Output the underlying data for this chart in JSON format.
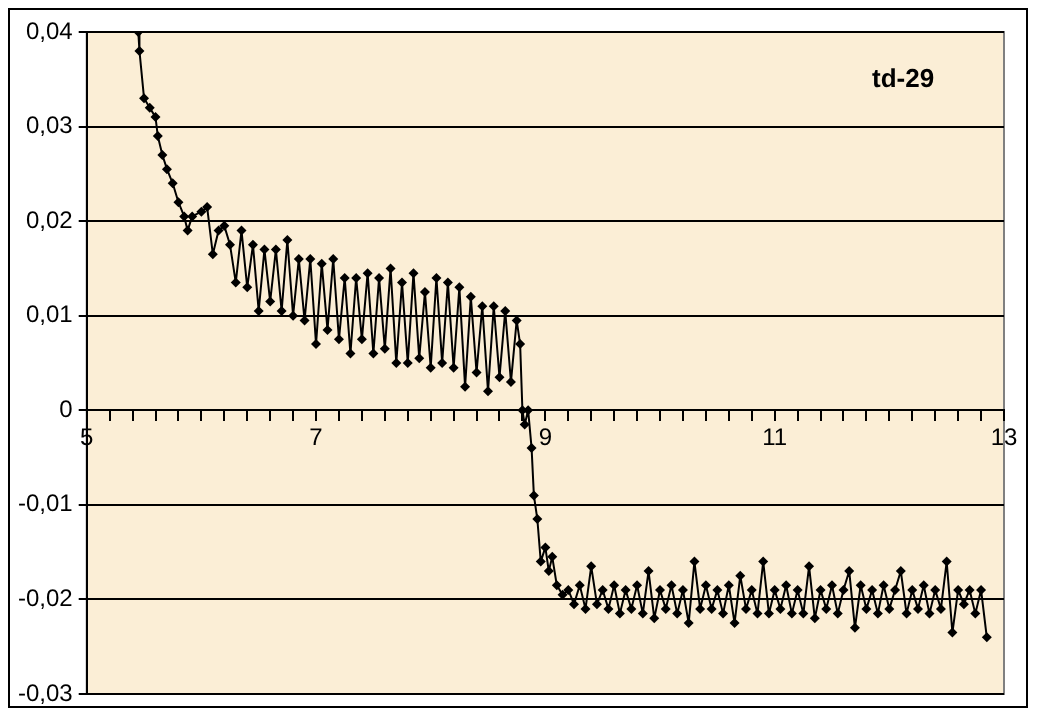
{
  "chart_data": {
    "type": "line",
    "annotations": [
      "td-29"
    ],
    "x": [
      5.45,
      5.46,
      5.5,
      5.55,
      5.6,
      5.62,
      5.66,
      5.7,
      5.75,
      5.8,
      5.85,
      5.88,
      5.92,
      6.0,
      6.05,
      6.1,
      6.15,
      6.2,
      6.25,
      6.3,
      6.35,
      6.4,
      6.45,
      6.5,
      6.55,
      6.6,
      6.65,
      6.7,
      6.75,
      6.8,
      6.85,
      6.9,
      6.95,
      7.0,
      7.05,
      7.1,
      7.15,
      7.2,
      7.25,
      7.3,
      7.35,
      7.4,
      7.45,
      7.5,
      7.55,
      7.6,
      7.65,
      7.7,
      7.75,
      7.8,
      7.85,
      7.9,
      7.95,
      8.0,
      8.05,
      8.1,
      8.15,
      8.2,
      8.25,
      8.3,
      8.35,
      8.4,
      8.45,
      8.5,
      8.55,
      8.6,
      8.65,
      8.7,
      8.75,
      8.78,
      8.8,
      8.82,
      8.85,
      8.88,
      8.9,
      8.93,
      8.96,
      9.0,
      9.03,
      9.06,
      9.1,
      9.15,
      9.2,
      9.25,
      9.3,
      9.35,
      9.4,
      9.45,
      9.5,
      9.55,
      9.6,
      9.65,
      9.7,
      9.75,
      9.8,
      9.85,
      9.9,
      9.95,
      10.0,
      10.05,
      10.1,
      10.15,
      10.2,
      10.25,
      10.3,
      10.35,
      10.4,
      10.45,
      10.5,
      10.55,
      10.6,
      10.65,
      10.7,
      10.75,
      10.8,
      10.85,
      10.9,
      10.95,
      11.0,
      11.05,
      11.1,
      11.15,
      11.2,
      11.25,
      11.3,
      11.35,
      11.4,
      11.45,
      11.5,
      11.55,
      11.6,
      11.65,
      11.7,
      11.75,
      11.8,
      11.85,
      11.9,
      11.95,
      12.0,
      12.05,
      12.1,
      12.15,
      12.2,
      12.25,
      12.3,
      12.35,
      12.4,
      12.45,
      12.5,
      12.55,
      12.6,
      12.65,
      12.7,
      12.75,
      12.8,
      12.85
    ],
    "series": [
      {
        "color": "#000000",
        "values": [
          0.04,
          0.038,
          0.033,
          0.032,
          0.031,
          0.029,
          0.027,
          0.0255,
          0.024,
          0.022,
          0.0205,
          0.019,
          0.0205,
          0.021,
          0.0215,
          0.0165,
          0.019,
          0.0195,
          0.0175,
          0.0135,
          0.019,
          0.013,
          0.0175,
          0.0105,
          0.017,
          0.0115,
          0.017,
          0.0105,
          0.018,
          0.01,
          0.016,
          0.0095,
          0.016,
          0.007,
          0.0155,
          0.0085,
          0.016,
          0.0075,
          0.014,
          0.006,
          0.014,
          0.0075,
          0.0145,
          0.006,
          0.014,
          0.0065,
          0.015,
          0.005,
          0.0135,
          0.005,
          0.0145,
          0.0055,
          0.0125,
          0.0045,
          0.014,
          0.005,
          0.0135,
          0.0045,
          0.013,
          0.0025,
          0.012,
          0.004,
          0.011,
          0.002,
          0.011,
          0.0035,
          0.0105,
          0.003,
          0.0095,
          0.007,
          0.0,
          -0.0015,
          0.0,
          -0.004,
          -0.009,
          -0.0115,
          -0.016,
          -0.0145,
          -0.017,
          -0.0155,
          -0.0185,
          -0.0195,
          -0.019,
          -0.0205,
          -0.0185,
          -0.021,
          -0.0165,
          -0.0205,
          -0.019,
          -0.021,
          -0.0185,
          -0.0215,
          -0.019,
          -0.021,
          -0.0185,
          -0.0215,
          -0.017,
          -0.022,
          -0.019,
          -0.021,
          -0.0185,
          -0.0215,
          -0.019,
          -0.0225,
          -0.016,
          -0.021,
          -0.0185,
          -0.021,
          -0.019,
          -0.0215,
          -0.0185,
          -0.0225,
          -0.0175,
          -0.021,
          -0.019,
          -0.0215,
          -0.016,
          -0.0215,
          -0.019,
          -0.021,
          -0.0185,
          -0.0215,
          -0.019,
          -0.0215,
          -0.0165,
          -0.022,
          -0.019,
          -0.021,
          -0.0185,
          -0.0215,
          -0.019,
          -0.017,
          -0.023,
          -0.0185,
          -0.021,
          -0.019,
          -0.0215,
          -0.0185,
          -0.021,
          -0.019,
          -0.017,
          -0.0215,
          -0.019,
          -0.021,
          -0.0185,
          -0.0215,
          -0.019,
          -0.021,
          -0.016,
          -0.0235,
          -0.019,
          -0.0205,
          -0.019,
          -0.0215,
          -0.019,
          -0.024
        ]
      }
    ],
    "xlim": [
      5,
      13
    ],
    "xticks": [
      {
        "value": 5,
        "label": "5"
      },
      {
        "value": 5.2,
        "label": null
      },
      {
        "value": 5.4,
        "label": null
      },
      {
        "value": 5.6,
        "label": null
      },
      {
        "value": 5.8,
        "label": null
      },
      {
        "value": 6,
        "label": null
      },
      {
        "value": 6.2,
        "label": null
      },
      {
        "value": 6.4,
        "label": null
      },
      {
        "value": 6.6,
        "label": null
      },
      {
        "value": 6.8,
        "label": null
      },
      {
        "value": 7,
        "label": "7"
      },
      {
        "value": 7.2,
        "label": null
      },
      {
        "value": 7.4,
        "label": null
      },
      {
        "value": 7.6,
        "label": null
      },
      {
        "value": 7.8,
        "label": null
      },
      {
        "value": 8,
        "label": null
      },
      {
        "value": 8.2,
        "label": null
      },
      {
        "value": 8.4,
        "label": null
      },
      {
        "value": 8.6,
        "label": null
      },
      {
        "value": 8.8,
        "label": null
      },
      {
        "value": 9,
        "label": "9"
      },
      {
        "value": 9.2,
        "label": null
      },
      {
        "value": 9.4,
        "label": null
      },
      {
        "value": 9.6,
        "label": null
      },
      {
        "value": 9.8,
        "label": null
      },
      {
        "value": 10,
        "label": null
      },
      {
        "value": 10.2,
        "label": null
      },
      {
        "value": 10.4,
        "label": null
      },
      {
        "value": 10.6,
        "label": null
      },
      {
        "value": 10.8,
        "label": null
      },
      {
        "value": 11,
        "label": "11"
      },
      {
        "value": 11.2,
        "label": null
      },
      {
        "value": 11.4,
        "label": null
      },
      {
        "value": 11.6,
        "label": null
      },
      {
        "value": 11.8,
        "label": null
      },
      {
        "value": 12,
        "label": null
      },
      {
        "value": 12.2,
        "label": null
      },
      {
        "value": 12.4,
        "label": null
      },
      {
        "value": 12.6,
        "label": null
      },
      {
        "value": 12.8,
        "label": null
      },
      {
        "value": 13,
        "label": "13"
      }
    ],
    "ylim": [
      -0.03,
      0.04
    ],
    "yticks": [
      {
        "value": -0.03,
        "label": "-0,03"
      },
      {
        "value": -0.02,
        "label": "-0,02"
      },
      {
        "value": -0.01,
        "label": "-0,01"
      },
      {
        "value": 0,
        "label": "0"
      },
      {
        "value": 0.01,
        "label": "0,01"
      },
      {
        "value": 0.02,
        "label": "0,02"
      },
      {
        "value": 0.03,
        "label": "0,03"
      },
      {
        "value": 0.04,
        "label": "0,04"
      }
    ],
    "grid": "y",
    "legend": false,
    "marker": "diamond",
    "line_style": "solid"
  }
}
